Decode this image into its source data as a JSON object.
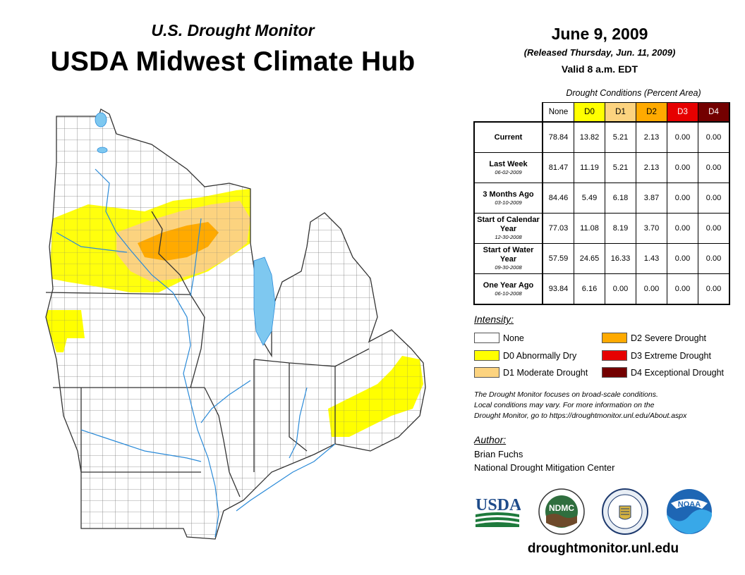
{
  "header": {
    "subtitle": "U.S. Drought Monitor",
    "title": "USDA Midwest Climate Hub",
    "date": "June 9, 2009",
    "released": "(Released Thursday, Jun. 11, 2009)",
    "valid": "Valid 8 a.m. EDT"
  },
  "conditions": {
    "caption": "Drought Conditions (Percent Area)",
    "columns": [
      "None",
      "D0",
      "D1",
      "D2",
      "D3",
      "D4"
    ],
    "column_colors": [
      "#ffffff",
      "#ffff00",
      "#fcd37f",
      "#ffaa00",
      "#e60000",
      "#730000"
    ],
    "rows": [
      {
        "label": "Current",
        "date": "",
        "values": [
          "78.84",
          "13.82",
          "5.21",
          "2.13",
          "0.00",
          "0.00"
        ]
      },
      {
        "label": "Last Week",
        "date": "06-02-2009",
        "values": [
          "81.47",
          "11.19",
          "5.21",
          "2.13",
          "0.00",
          "0.00"
        ]
      },
      {
        "label": "3 Months Ago",
        "date": "03-10-2009",
        "values": [
          "84.46",
          "5.49",
          "6.18",
          "3.87",
          "0.00",
          "0.00"
        ]
      },
      {
        "label": "Start of Calendar Year",
        "date": "12-30-2008",
        "values": [
          "77.03",
          "11.08",
          "8.19",
          "3.70",
          "0.00",
          "0.00"
        ]
      },
      {
        "label": "Start of Water Year",
        "date": "09-30-2008",
        "values": [
          "57.59",
          "24.65",
          "16.33",
          "1.43",
          "0.00",
          "0.00"
        ]
      },
      {
        "label": "One Year Ago",
        "date": "06-10-2008",
        "values": [
          "93.84",
          "6.16",
          "0.00",
          "0.00",
          "0.00",
          "0.00"
        ]
      }
    ]
  },
  "legend": {
    "title": "Intensity:",
    "items": [
      {
        "label": "None",
        "color": "#ffffff"
      },
      {
        "label": "D0 Abnormally Dry",
        "color": "#ffff00"
      },
      {
        "label": "D1 Moderate Drought",
        "color": "#fcd37f"
      },
      {
        "label": "D2 Severe Drought",
        "color": "#ffaa00"
      },
      {
        "label": "D3 Extreme Drought",
        "color": "#e60000"
      },
      {
        "label": "D4 Exceptional Drought",
        "color": "#730000"
      }
    ]
  },
  "note": {
    "line1": "The Drought Monitor focuses on broad-scale conditions.",
    "line2": "Local conditions may vary. For more information on the",
    "line3": "Drought Monitor, go to https://droughtmonitor.unl.edu/About.aspx"
  },
  "author": {
    "title": "Author:",
    "name": "Brian Fuchs",
    "org": "National Drought Mitigation Center"
  },
  "logos": {
    "usda": "USDA",
    "ndmc": "NDMC",
    "noaa": "NOAA"
  },
  "footer": {
    "site": "droughtmonitor.unl.edu"
  },
  "colors": {
    "water": "#7ec8f0",
    "river": "#2a8ad8",
    "border": "#333333"
  }
}
